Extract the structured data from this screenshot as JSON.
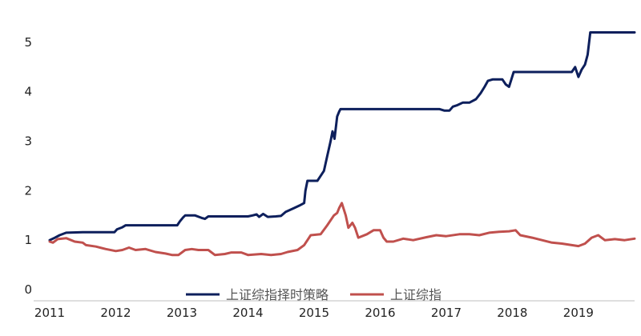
{
  "chart_data": {
    "type": "line",
    "title": "",
    "xlabel": "",
    "ylabel": "",
    "xlim": [
      2011.0,
      2019.85
    ],
    "ylim": [
      0,
      5.5
    ],
    "x_ticks": [
      "2011",
      "2012",
      "2013",
      "2014",
      "2015",
      "2016",
      "2017",
      "2018",
      "2019"
    ],
    "y_ticks": [
      "0",
      "1",
      "2",
      "3",
      "4",
      "5"
    ],
    "grid": false,
    "legend_position": "bottom-center",
    "series": [
      {
        "name": "上证综指择时策略",
        "color": "#0d1f5c",
        "points": [
          [
            2011.0,
            1.0
          ],
          [
            2011.08,
            1.05
          ],
          [
            2011.15,
            1.1
          ],
          [
            2011.25,
            1.15
          ],
          [
            2011.5,
            1.16
          ],
          [
            2011.98,
            1.16
          ],
          [
            2012.02,
            1.22
          ],
          [
            2012.1,
            1.26
          ],
          [
            2012.15,
            1.3
          ],
          [
            2012.93,
            1.3
          ],
          [
            2012.97,
            1.38
          ],
          [
            2013.02,
            1.46
          ],
          [
            2013.05,
            1.5
          ],
          [
            2013.15,
            1.5
          ],
          [
            2013.2,
            1.5
          ],
          [
            2013.3,
            1.45
          ],
          [
            2013.35,
            1.43
          ],
          [
            2013.4,
            1.48
          ],
          [
            2013.6,
            1.48
          ],
          [
            2014.0,
            1.48
          ],
          [
            2014.07,
            1.5
          ],
          [
            2014.13,
            1.52
          ],
          [
            2014.17,
            1.47
          ],
          [
            2014.23,
            1.53
          ],
          [
            2014.3,
            1.47
          ],
          [
            2014.42,
            1.48
          ],
          [
            2014.5,
            1.49
          ],
          [
            2014.57,
            1.57
          ],
          [
            2014.7,
            1.65
          ],
          [
            2014.78,
            1.7
          ],
          [
            2014.85,
            1.75
          ],
          [
            2014.87,
            2.0
          ],
          [
            2014.9,
            2.2
          ],
          [
            2015.05,
            2.2
          ],
          [
            2015.1,
            2.3
          ],
          [
            2015.15,
            2.4
          ],
          [
            2015.2,
            2.7
          ],
          [
            2015.25,
            3.0
          ],
          [
            2015.28,
            3.2
          ],
          [
            2015.31,
            3.05
          ],
          [
            2015.35,
            3.5
          ],
          [
            2015.38,
            3.6
          ],
          [
            2015.4,
            3.65
          ],
          [
            2016.9,
            3.65
          ],
          [
            2016.97,
            3.62
          ],
          [
            2017.05,
            3.62
          ],
          [
            2017.1,
            3.7
          ],
          [
            2017.17,
            3.73
          ],
          [
            2017.25,
            3.78
          ],
          [
            2017.35,
            3.78
          ],
          [
            2017.45,
            3.85
          ],
          [
            2017.52,
            3.97
          ],
          [
            2017.58,
            4.1
          ],
          [
            2017.63,
            4.22
          ],
          [
            2017.7,
            4.25
          ],
          [
            2017.85,
            4.25
          ],
          [
            2017.9,
            4.15
          ],
          [
            2017.95,
            4.1
          ],
          [
            2018.02,
            4.4
          ],
          [
            2018.9,
            4.4
          ],
          [
            2018.95,
            4.5
          ],
          [
            2019.0,
            4.3
          ],
          [
            2019.05,
            4.45
          ],
          [
            2019.1,
            4.55
          ],
          [
            2019.14,
            4.75
          ],
          [
            2019.18,
            5.2
          ],
          [
            2019.85,
            5.2
          ]
        ]
      },
      {
        "name": "上证综指",
        "color": "#c0504d",
        "points": [
          [
            2011.0,
            0.97
          ],
          [
            2011.05,
            0.95
          ],
          [
            2011.12,
            1.02
          ],
          [
            2011.25,
            1.04
          ],
          [
            2011.38,
            0.97
          ],
          [
            2011.5,
            0.95
          ],
          [
            2011.55,
            0.9
          ],
          [
            2011.7,
            0.87
          ],
          [
            2011.85,
            0.82
          ],
          [
            2012.0,
            0.78
          ],
          [
            2012.1,
            0.8
          ],
          [
            2012.2,
            0.85
          ],
          [
            2012.3,
            0.8
          ],
          [
            2012.45,
            0.82
          ],
          [
            2012.6,
            0.76
          ],
          [
            2012.75,
            0.73
          ],
          [
            2012.85,
            0.7
          ],
          [
            2012.95,
            0.7
          ],
          [
            2013.05,
            0.8
          ],
          [
            2013.15,
            0.82
          ],
          [
            2013.25,
            0.8
          ],
          [
            2013.4,
            0.8
          ],
          [
            2013.5,
            0.7
          ],
          [
            2013.65,
            0.72
          ],
          [
            2013.75,
            0.75
          ],
          [
            2013.9,
            0.75
          ],
          [
            2014.0,
            0.7
          ],
          [
            2014.2,
            0.72
          ],
          [
            2014.35,
            0.7
          ],
          [
            2014.5,
            0.72
          ],
          [
            2014.6,
            0.76
          ],
          [
            2014.75,
            0.8
          ],
          [
            2014.85,
            0.9
          ],
          [
            2014.95,
            1.1
          ],
          [
            2015.1,
            1.12
          ],
          [
            2015.2,
            1.3
          ],
          [
            2015.3,
            1.5
          ],
          [
            2015.35,
            1.55
          ],
          [
            2015.38,
            1.65
          ],
          [
            2015.42,
            1.75
          ],
          [
            2015.48,
            1.5
          ],
          [
            2015.52,
            1.25
          ],
          [
            2015.58,
            1.35
          ],
          [
            2015.62,
            1.25
          ],
          [
            2015.67,
            1.05
          ],
          [
            2015.8,
            1.12
          ],
          [
            2015.9,
            1.2
          ],
          [
            2016.0,
            1.2
          ],
          [
            2016.05,
            1.05
          ],
          [
            2016.1,
            0.97
          ],
          [
            2016.2,
            0.97
          ],
          [
            2016.35,
            1.03
          ],
          [
            2016.5,
            1.0
          ],
          [
            2016.7,
            1.06
          ],
          [
            2016.85,
            1.1
          ],
          [
            2017.0,
            1.08
          ],
          [
            2017.2,
            1.12
          ],
          [
            2017.35,
            1.12
          ],
          [
            2017.5,
            1.1
          ],
          [
            2017.65,
            1.15
          ],
          [
            2017.8,
            1.17
          ],
          [
            2017.95,
            1.18
          ],
          [
            2018.05,
            1.2
          ],
          [
            2018.12,
            1.1
          ],
          [
            2018.3,
            1.05
          ],
          [
            2018.45,
            1.0
          ],
          [
            2018.6,
            0.95
          ],
          [
            2018.75,
            0.93
          ],
          [
            2018.9,
            0.9
          ],
          [
            2019.0,
            0.88
          ],
          [
            2019.1,
            0.93
          ],
          [
            2019.2,
            1.05
          ],
          [
            2019.3,
            1.1
          ],
          [
            2019.4,
            1.0
          ],
          [
            2019.55,
            1.02
          ],
          [
            2019.7,
            1.0
          ],
          [
            2019.85,
            1.03
          ]
        ]
      }
    ]
  }
}
